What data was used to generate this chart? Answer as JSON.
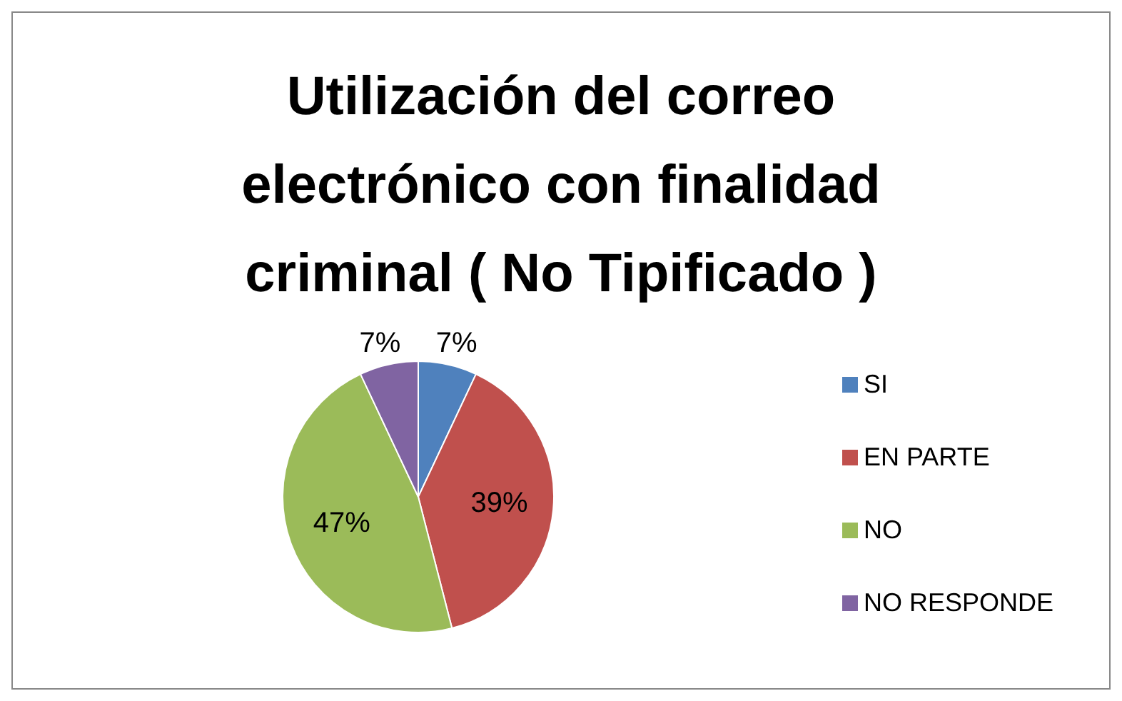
{
  "chart_data": {
    "type": "pie",
    "title": "Utilización del correo electrónico con finalidad criminal ( No Tipificado )",
    "categories": [
      "SI",
      "EN PARTE",
      "NO",
      "NO RESPONDE"
    ],
    "values": [
      7,
      39,
      47,
      7
    ],
    "colors": [
      "#4f81bd",
      "#c0504d",
      "#9bbb59",
      "#8064a2"
    ],
    "value_labels": [
      "7%",
      "39%",
      "47%",
      "7%"
    ],
    "legend": "right"
  }
}
